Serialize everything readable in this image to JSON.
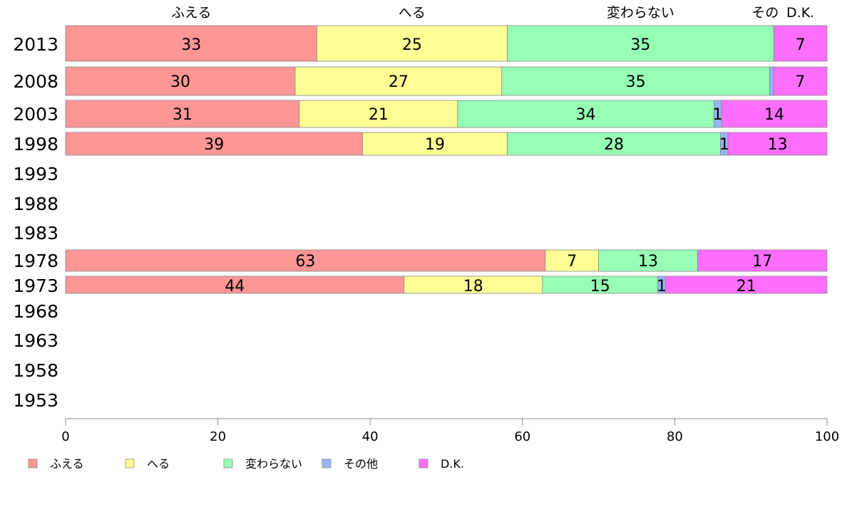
{
  "chart_data": {
    "type": "bar",
    "orientation": "horizontal",
    "stacked": true,
    "title": "",
    "xlabel": "",
    "ylabel": "",
    "xlim": [
      0,
      100
    ],
    "xticks": [
      0,
      20,
      40,
      60,
      80,
      100
    ],
    "grid": false,
    "legend_position": "bottom-left",
    "categories": [
      "2013",
      "2008",
      "2003",
      "1998",
      "1993",
      "1988",
      "1983",
      "1978",
      "1973",
      "1968",
      "1963",
      "1958",
      "1953"
    ],
    "series": [
      {
        "name": "ふえる",
        "color": "#ff9696",
        "values": [
          33,
          30,
          31,
          39,
          null,
          null,
          null,
          63,
          44,
          null,
          null,
          null,
          null
        ]
      },
      {
        "name": "へる",
        "color": "#ffff96",
        "values": [
          25,
          27,
          21,
          19,
          null,
          null,
          null,
          7,
          18,
          null,
          null,
          null,
          null
        ]
      },
      {
        "name": "変わらない",
        "color": "#96ffb4",
        "values": [
          35,
          35,
          34,
          28,
          null,
          null,
          null,
          13,
          15,
          null,
          null,
          null,
          null
        ]
      },
      {
        "name": "その他",
        "color": "#96b4ff",
        "values": [
          0,
          0.5,
          1,
          1,
          null,
          null,
          null,
          0,
          1,
          null,
          null,
          null,
          null
        ]
      },
      {
        "name": "D.K.",
        "color": "#ff6eff",
        "values": [
          7,
          7,
          14,
          13,
          null,
          null,
          null,
          17,
          21,
          null,
          null,
          null,
          null
        ]
      }
    ],
    "top_labels": [
      "ふえる",
      "へる",
      "変わらない",
      "その",
      "D.K."
    ]
  }
}
